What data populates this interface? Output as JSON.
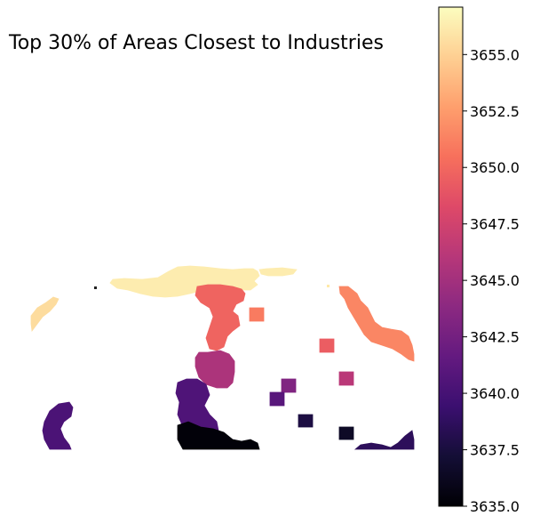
{
  "title": "Top 30% of Areas Closest to Industries",
  "colorbar": {
    "colormap": "magma",
    "min": 3635.0,
    "max": 3657.1,
    "ticks": [
      "3635.0",
      "3637.5",
      "3640.0",
      "3642.5",
      "3645.0",
      "3647.5",
      "3650.0",
      "3652.5",
      "3655.0"
    ],
    "tick_values": [
      3635.0,
      3637.5,
      3640.0,
      3642.5,
      3645.0,
      3647.5,
      3650.0,
      3652.5,
      3655.0
    ]
  },
  "regions": [
    {
      "name": "top-band",
      "value": 3656.3
    },
    {
      "name": "left-edge",
      "value": 3655.5
    },
    {
      "name": "central-spine-upper",
      "value": 3649.8
    },
    {
      "name": "central-spine-middle",
      "value": 3645.5
    },
    {
      "name": "central-spine-lower",
      "value": 3640.5
    },
    {
      "name": "bottom-dark",
      "value": 3635.2
    },
    {
      "name": "left-arc",
      "value": 3640.3
    },
    {
      "name": "right-strip",
      "value": 3651.5
    },
    {
      "name": "square-a",
      "value": 3651.0
    },
    {
      "name": "square-b",
      "value": 3649.4
    },
    {
      "name": "square-c",
      "value": 3646.2
    },
    {
      "name": "square-d",
      "value": 3643.2
    },
    {
      "name": "square-e",
      "value": 3641.0
    },
    {
      "name": "square-f",
      "value": 3637.7
    },
    {
      "name": "square-g",
      "value": 3636.5
    },
    {
      "name": "bottom-right-blob",
      "value": 3638.6
    }
  ]
}
